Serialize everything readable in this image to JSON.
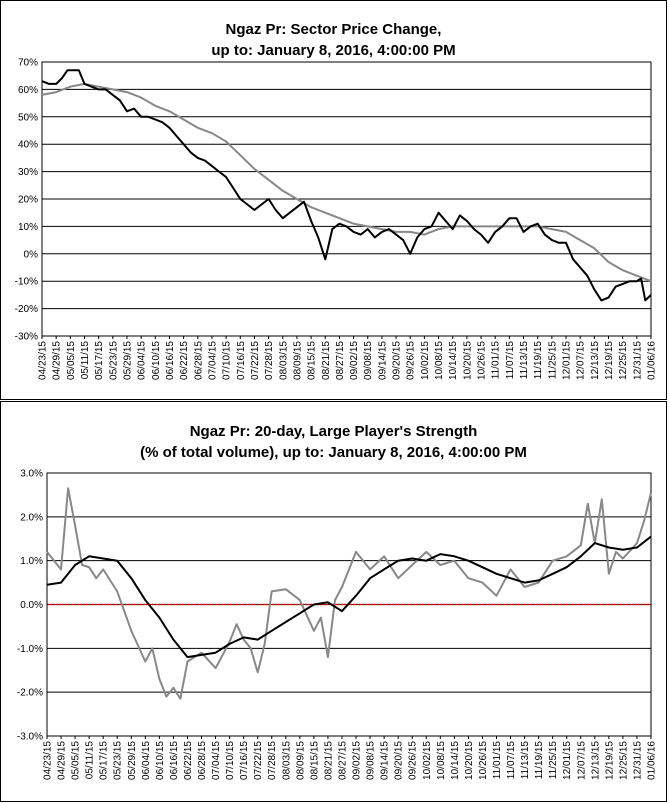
{
  "chart_data": [
    {
      "type": "line",
      "title_line1": "Ngaz Pr: Sector Price Change,",
      "title_line2": "up to: January 8, 2016, 4:00:00 PM",
      "ylim": [
        -30,
        70
      ],
      "ytick_values": [
        -30,
        -20,
        -10,
        0,
        10,
        20,
        30,
        40,
        50,
        60,
        70
      ],
      "ytick_labels": [
        "-30%",
        "-20%",
        "-10%",
        "0%",
        "10%",
        "20%",
        "30%",
        "40%",
        "50%",
        "60%",
        "70%"
      ],
      "x_labels": [
        "04/23/15",
        "04/29/15",
        "05/05/15",
        "05/11/15",
        "05/17/15",
        "05/23/15",
        "05/29/15",
        "06/04/15",
        "06/10/15",
        "06/16/15",
        "06/22/15",
        "06/28/15",
        "07/04/15",
        "07/10/15",
        "07/16/15",
        "07/22/15",
        "07/28/15",
        "08/03/15",
        "08/09/15",
        "08/15/15",
        "08/21/15",
        "08/27/15",
        "09/02/15",
        "09/08/15",
        "09/14/15",
        "09/20/15",
        "09/26/15",
        "10/02/15",
        "10/08/15",
        "10/14/15",
        "10/20/15",
        "10/26/15",
        "11/01/15",
        "11/07/15",
        "11/13/15",
        "11/19/15",
        "11/25/15",
        "12/01/15",
        "12/07/15",
        "12/13/15",
        "12/19/15",
        "12/25/15",
        "12/31/15",
        "01/06/16"
      ],
      "x_range": [
        0,
        43
      ],
      "grid": true,
      "series": [
        {
          "color": "#000000",
          "x": [
            0,
            0.5,
            1,
            1.4,
            1.8,
            2.2,
            2.6,
            3,
            3.5,
            4,
            4.5,
            5,
            5.5,
            6,
            6.5,
            7,
            7.5,
            8,
            8.5,
            9,
            9.5,
            10,
            10.5,
            11,
            11.5,
            12,
            12.5,
            13,
            13.5,
            14,
            14.5,
            15,
            15.5,
            16,
            16.5,
            17,
            17.5,
            18,
            18.5,
            19,
            19.5,
            20,
            20.5,
            21,
            21.5,
            22,
            22.5,
            23,
            23.5,
            24,
            24.5,
            25,
            25.5,
            26,
            26.5,
            27,
            27.5,
            28,
            28.5,
            29,
            29.5,
            30,
            30.5,
            31,
            31.5,
            32,
            32.5,
            33,
            33.5,
            34,
            34.5,
            35,
            35.5,
            36,
            36.5,
            37,
            37.5,
            38,
            38.5,
            39,
            39.5,
            40,
            40.5,
            41,
            41.5,
            42,
            42.3,
            42.6,
            43
          ],
          "values": [
            63,
            62,
            62,
            64,
            67,
            67,
            67,
            62,
            61,
            60,
            60,
            58,
            56,
            52,
            53,
            50,
            50,
            49,
            48,
            46,
            43,
            40,
            37,
            35,
            34,
            32,
            30,
            28,
            24,
            20,
            18,
            16,
            18,
            20,
            16,
            13,
            15,
            17,
            19,
            12,
            6,
            -2,
            9,
            11,
            10,
            8,
            7,
            9,
            6,
            8,
            9,
            7,
            5,
            0,
            6,
            9,
            10,
            15,
            12,
            9,
            14,
            12,
            9,
            7,
            4,
            8,
            10,
            13,
            13,
            8,
            10,
            11,
            7,
            5,
            4,
            4,
            -2,
            -5,
            -8,
            -13,
            -17,
            -16,
            -12,
            -11,
            -10,
            -10,
            -9,
            -17,
            -15
          ]
        },
        {
          "color": "#888888",
          "x": [
            0,
            1,
            2,
            3,
            4,
            5,
            6,
            7,
            8,
            9,
            10,
            11,
            12,
            13,
            14,
            15,
            16,
            17,
            18,
            19,
            20,
            21,
            22,
            23,
            24,
            25,
            26,
            27,
            28,
            29,
            30,
            31,
            32,
            33,
            34,
            35,
            36,
            37,
            38,
            39,
            40,
            41,
            42,
            43
          ],
          "values": [
            58,
            59,
            61,
            62,
            61,
            60,
            59,
            57,
            54,
            52,
            49,
            46,
            44,
            41,
            36,
            31,
            27,
            23,
            20,
            17,
            15,
            13,
            11,
            10,
            9,
            8,
            8,
            7,
            9,
            10,
            10,
            10,
            10,
            10,
            10,
            10,
            9,
            8,
            5,
            2,
            -3,
            -6,
            -8,
            -10
          ]
        }
      ]
    },
    {
      "type": "line",
      "title_line1": "Ngaz Pr: 20-day, Large Player's Strength",
      "title_line2": "(% of total volume), up to: January 8, 2016, 4:00:00 PM",
      "ylim": [
        -3.0,
        3.0
      ],
      "ytick_values": [
        -3,
        -2,
        -1,
        0,
        1,
        2,
        3
      ],
      "ytick_labels": [
        "-3.0%",
        "-2.0%",
        "-1.0%",
        "0.0%",
        "1.0%",
        "2.0%",
        "3.0%"
      ],
      "x_labels": [
        "04/23/15",
        "04/29/15",
        "05/05/15",
        "05/11/15",
        "05/17/15",
        "05/23/15",
        "05/29/15",
        "06/04/15",
        "06/10/15",
        "06/16/15",
        "06/22/15",
        "06/28/15",
        "07/04/15",
        "07/10/15",
        "07/16/15",
        "07/22/15",
        "07/28/15",
        "08/03/15",
        "08/09/15",
        "08/15/15",
        "08/21/15",
        "08/27/15",
        "09/02/15",
        "09/08/15",
        "09/14/15",
        "09/20/15",
        "09/26/15",
        "10/02/15",
        "10/08/15",
        "10/14/15",
        "10/20/15",
        "10/26/15",
        "11/01/15",
        "11/07/15",
        "11/13/15",
        "11/19/15",
        "11/25/15",
        "12/01/15",
        "12/07/15",
        "12/13/15",
        "12/19/15",
        "12/25/15",
        "12/31/15",
        "01/06/16"
      ],
      "x_range": [
        0,
        43
      ],
      "grid": true,
      "zero_line_color": "#ff0000",
      "series": [
        {
          "color": "#000000",
          "x": [
            0,
            1,
            2,
            3,
            4,
            5,
            6,
            7,
            8,
            9,
            10,
            11,
            12,
            13,
            14,
            15,
            16,
            17,
            18,
            19,
            20,
            21,
            22,
            23,
            24,
            25,
            26,
            27,
            28,
            29,
            30,
            31,
            32,
            33,
            34,
            35,
            36,
            37,
            38,
            39,
            40,
            41,
            42,
            43
          ],
          "values": [
            0.45,
            0.5,
            0.9,
            1.1,
            1.05,
            1.0,
            0.6,
            0.1,
            -0.3,
            -0.8,
            -1.2,
            -1.15,
            -1.1,
            -0.9,
            -0.75,
            -0.8,
            -0.6,
            -0.4,
            -0.2,
            0.0,
            0.05,
            -0.15,
            0.2,
            0.6,
            0.8,
            1.0,
            1.05,
            1.0,
            1.15,
            1.1,
            1.0,
            0.85,
            0.7,
            0.6,
            0.5,
            0.55,
            0.7,
            0.85,
            1.1,
            1.4,
            1.3,
            1.25,
            1.3,
            1.55
          ]
        },
        {
          "color": "#888888",
          "x": [
            0,
            1,
            1.5,
            2,
            2.5,
            3,
            3.5,
            4,
            5,
            6,
            7,
            7.5,
            8,
            8.5,
            9,
            9.5,
            10,
            11,
            12,
            13,
            13.5,
            14,
            14.5,
            15,
            15.5,
            16,
            17,
            18,
            19,
            19.5,
            20,
            20.5,
            21,
            22,
            23,
            24,
            25,
            26,
            27,
            28,
            29,
            30,
            31,
            32,
            33,
            34,
            35,
            36,
            37,
            38,
            38.5,
            39,
            39.5,
            40,
            40.5,
            41,
            42,
            42.5,
            43
          ],
          "values": [
            1.2,
            0.8,
            2.65,
            1.8,
            0.9,
            0.85,
            0.6,
            0.8,
            0.3,
            -0.6,
            -1.3,
            -1.0,
            -1.7,
            -2.1,
            -1.9,
            -2.15,
            -1.3,
            -1.1,
            -1.45,
            -0.85,
            -0.45,
            -0.8,
            -1.0,
            -1.55,
            -0.9,
            0.3,
            0.35,
            0.1,
            -0.6,
            -0.3,
            -1.2,
            0.1,
            0.4,
            1.2,
            0.8,
            1.1,
            0.6,
            0.9,
            1.2,
            0.9,
            1.0,
            0.6,
            0.5,
            0.2,
            0.8,
            0.4,
            0.5,
            1.0,
            1.1,
            1.35,
            2.3,
            1.4,
            2.4,
            0.7,
            1.2,
            1.05,
            1.4,
            1.9,
            2.55
          ]
        }
      ]
    }
  ]
}
